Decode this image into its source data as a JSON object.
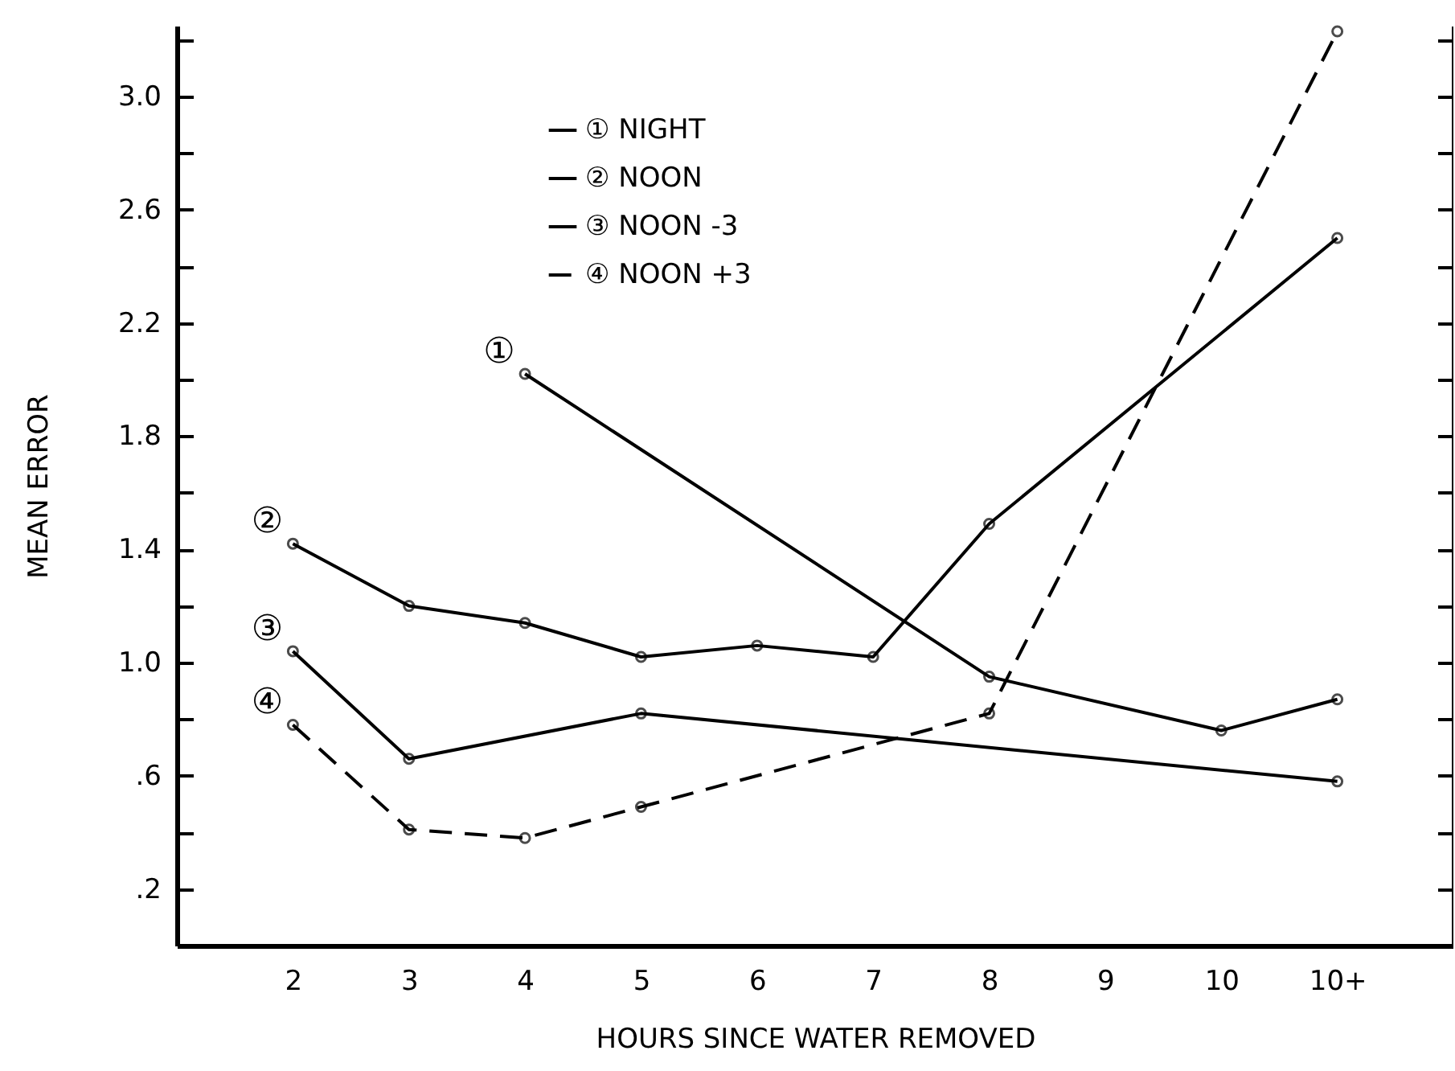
{
  "chart_data": {
    "type": "line",
    "xlabel": "HOURS SINCE WATER REMOVED",
    "ylabel": "MEAN ERROR",
    "categories": [
      "2",
      "3",
      "4",
      "5",
      "6",
      "7",
      "8",
      "9",
      "10",
      "10+"
    ],
    "series": [
      {
        "name": "① NIGHT",
        "color": "#000000",
        "line_style": "solid",
        "x": [
          "4",
          "8",
          "10",
          "10+"
        ],
        "values": [
          2.02,
          0.95,
          0.76,
          0.87
        ]
      },
      {
        "name": "② NOON",
        "color": "#000000",
        "line_style": "solid",
        "x": [
          "2",
          "3",
          "4",
          "5",
          "6",
          "7",
          "8",
          "10+"
        ],
        "values": [
          1.42,
          1.2,
          1.14,
          1.02,
          1.06,
          1.02,
          1.49,
          2.5
        ]
      },
      {
        "name": "③ NOON -3",
        "color": "#000000",
        "line_style": "solid",
        "x": [
          "2",
          "3",
          "5",
          "10+"
        ],
        "values": [
          1.04,
          0.66,
          0.82,
          0.58
        ]
      },
      {
        "name": "④ NOON +3",
        "color": "#000000",
        "line_style": "dashed",
        "x": [
          "2",
          "3",
          "4",
          "5",
          "8",
          "10+"
        ],
        "values": [
          0.78,
          0.41,
          0.38,
          0.49,
          0.82,
          3.23
        ]
      }
    ],
    "annotations": [
      {
        "text": "①",
        "x": "4",
        "y": 2.02
      },
      {
        "text": "②",
        "x": "2",
        "y": 1.42
      },
      {
        "text": "③",
        "x": "2",
        "y": 1.04
      },
      {
        "text": "④",
        "x": "2",
        "y": 0.78
      }
    ],
    "ylim": [
      0,
      3.25
    ],
    "yticks": [
      {
        "value": 0.2,
        "label": ".2"
      },
      {
        "value": 0.4,
        "label": null
      },
      {
        "value": 0.6,
        "label": ".6"
      },
      {
        "value": 0.8,
        "label": null
      },
      {
        "value": 1.0,
        "label": "1.0"
      },
      {
        "value": 1.2,
        "label": null
      },
      {
        "value": 1.4,
        "label": "1.4"
      },
      {
        "value": 1.6,
        "label": null
      },
      {
        "value": 1.8,
        "label": "1.8"
      },
      {
        "value": 2.0,
        "label": null
      },
      {
        "value": 2.2,
        "label": "2.2"
      },
      {
        "value": 2.4,
        "label": null
      },
      {
        "value": 2.6,
        "label": "2.6"
      },
      {
        "value": 2.8,
        "label": null
      },
      {
        "value": 3.0,
        "label": "3.0"
      },
      {
        "value": 3.2,
        "label": null
      }
    ],
    "grid": false,
    "legend": "top",
    "marker": "circle"
  }
}
